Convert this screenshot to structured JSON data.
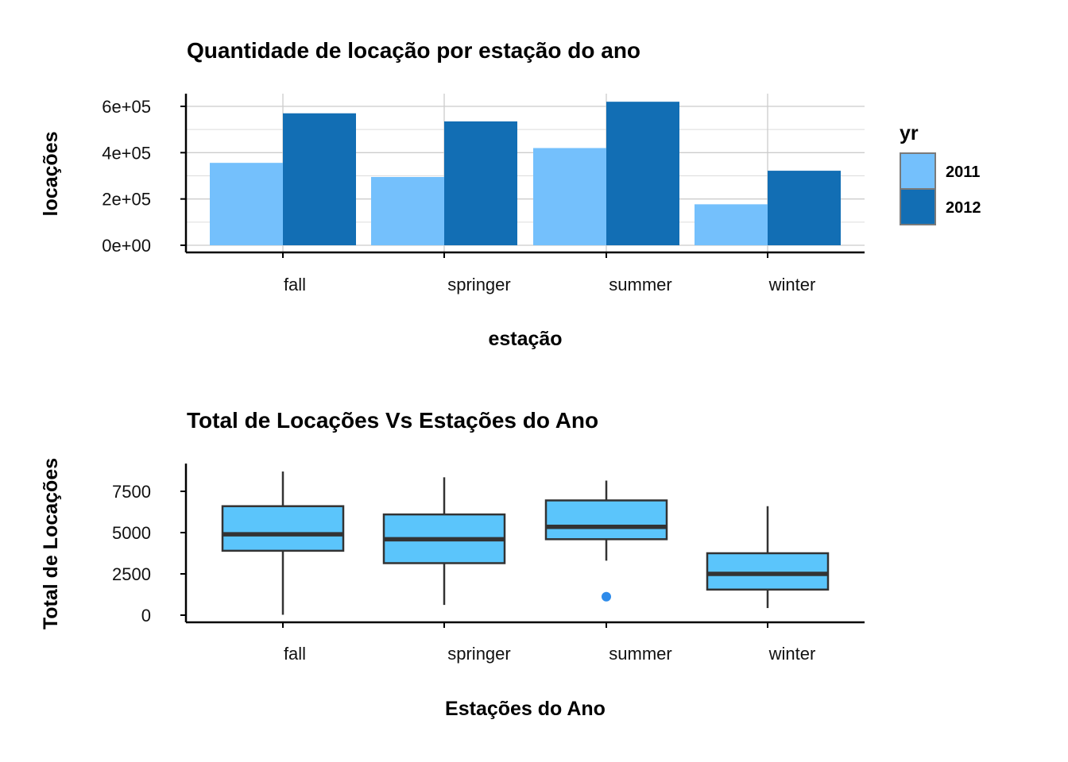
{
  "chart_data": [
    {
      "type": "bar",
      "title": "Quantidade de locação por estação do ano",
      "xlabel": "estação",
      "ylabel": "locações",
      "categories": [
        "fall",
        "springer",
        "summer",
        "winter"
      ],
      "ylim": [
        0,
        650000
      ],
      "yticks": [
        0,
        200000,
        400000,
        600000
      ],
      "ytick_labels": [
        "0e+00",
        "2e+05",
        "4e+05",
        "6e+05"
      ],
      "grid": true,
      "legend": {
        "title": "yr",
        "position": "right"
      },
      "series": [
        {
          "name": "2011",
          "color": "#74C0FC",
          "values": [
            356000,
            295000,
            420000,
            177000
          ]
        },
        {
          "name": "2012",
          "color": "#126EB4",
          "values": [
            570000,
            535000,
            620000,
            322000
          ]
        }
      ]
    },
    {
      "type": "boxplot",
      "title": "Total de Locações Vs Estações do Ano",
      "xlabel": "Estações do Ano",
      "ylabel": "Total de Locações",
      "categories": [
        "fall",
        "springer",
        "summer",
        "winter"
      ],
      "ylim": [
        -400,
        9200
      ],
      "yticks": [
        0,
        2500,
        5000,
        7500
      ],
      "ytick_labels": [
        "0",
        "2500",
        "5000",
        "7500"
      ],
      "grid": false,
      "box_color": "#5BC5FB",
      "outlier_color": "#2E8BEA",
      "boxes": [
        {
          "category": "fall",
          "min": 22,
          "q1": 3900,
          "median": 4900,
          "q3": 6600,
          "max": 8700,
          "outliers": []
        },
        {
          "category": "springer",
          "min": 620,
          "q1": 3150,
          "median": 4600,
          "q3": 6100,
          "max": 8350,
          "outliers": []
        },
        {
          "category": "summer",
          "min": 3300,
          "q1": 4600,
          "median": 5350,
          "q3": 6950,
          "max": 8150,
          "outliers": [
            1120
          ]
        },
        {
          "category": "winter",
          "min": 430,
          "q1": 1550,
          "median": 2500,
          "q3": 3750,
          "max": 6600,
          "outliers": []
        }
      ]
    }
  ]
}
